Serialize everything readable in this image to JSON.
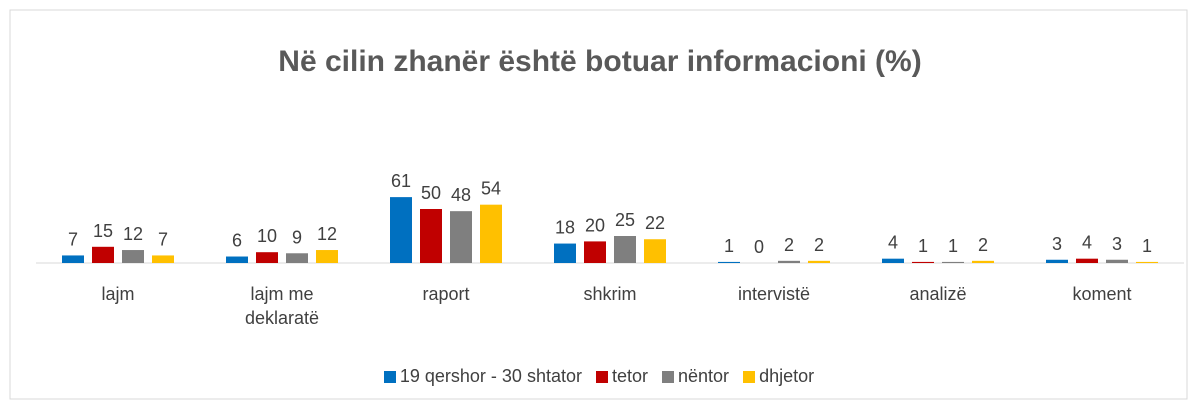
{
  "chart_data": {
    "type": "bar",
    "title": "Në cilin zhanër është botuar informacioni (%)",
    "categories": [
      "lajm",
      "lajm me deklaratë",
      "raport",
      "shkrim",
      "intervistë",
      "analizë",
      "koment"
    ],
    "series": [
      {
        "name": "19 qershor - 30 shtator",
        "color": "#0070c0",
        "values": [
          7,
          6,
          61,
          18,
          1,
          4,
          3
        ]
      },
      {
        "name": "tetor",
        "color": "#c00000",
        "values": [
          15,
          10,
          50,
          20,
          0,
          1,
          4
        ]
      },
      {
        "name": "nëntor",
        "color": "#7f7f7f",
        "values": [
          12,
          9,
          48,
          25,
          2,
          1,
          3
        ]
      },
      {
        "name": "dhjetor",
        "color": "#ffc000",
        "values": [
          7,
          12,
          54,
          22,
          2,
          2,
          1
        ]
      }
    ],
    "legend": "bottom"
  }
}
